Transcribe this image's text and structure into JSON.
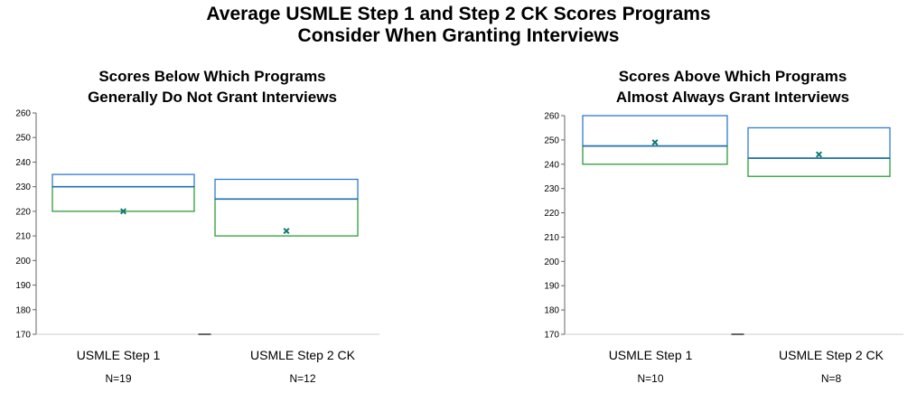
{
  "title": {
    "line1": "Average USMLE Step 1 and Step 2 CK Scores Programs",
    "line2": "Consider When Granting Interviews"
  },
  "colors": {
    "upper_box": "#2e7bcf",
    "lower_box": "#2e9a3a",
    "median": "#1f6fb3",
    "mean_marker": "#0e7a72"
  },
  "chart_data": [
    {
      "type": "box",
      "title_lines": [
        "Scores Below Which Programs",
        "Generally Do Not Grant Interviews"
      ],
      "ylim": [
        170,
        260
      ],
      "yticks": [
        170,
        180,
        190,
        200,
        210,
        220,
        230,
        240,
        250,
        260
      ],
      "categories": [
        "USMLE Step 1",
        "USMLE Step 2 CK"
      ],
      "n_labels": [
        "N=19",
        "N=12"
      ],
      "boxes": [
        {
          "q1": 220,
          "median": 230,
          "q3": 235,
          "mean": 220
        },
        {
          "q1": 210,
          "median": 225,
          "q3": 233,
          "mean": 212
        }
      ]
    },
    {
      "type": "box",
      "title_lines": [
        "Scores Above Which Programs",
        "Almost Always Grant Interviews"
      ],
      "ylim": [
        170,
        260
      ],
      "yticks": [
        170,
        180,
        190,
        200,
        210,
        220,
        230,
        240,
        250,
        260
      ],
      "categories": [
        "USMLE Step 1",
        "USMLE Step 2 CK"
      ],
      "n_labels": [
        "N=10",
        "N=8"
      ],
      "boxes": [
        {
          "q1": 240,
          "median": 247.5,
          "q3": 260,
          "mean": 249
        },
        {
          "q1": 235,
          "median": 242.5,
          "q3": 255,
          "mean": 244
        }
      ]
    }
  ]
}
